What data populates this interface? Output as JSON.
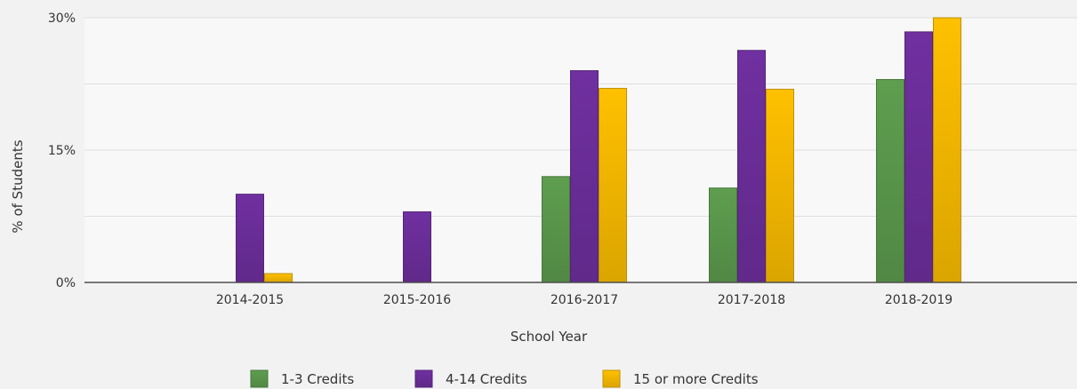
{
  "chart_data": {
    "type": "bar",
    "categories": [
      "2014-2015",
      "2015-2016",
      "2016-2017",
      "2017-2018",
      "2018-2019"
    ],
    "series": [
      {
        "name": "1-3 Credits",
        "color": "#5e9e4f",
        "values": [
          0,
          0,
          12,
          10.7,
          23
        ]
      },
      {
        "name": "4-14 Credits",
        "color": "#7030a0",
        "values": [
          10,
          8,
          24,
          26.3,
          28.4
        ]
      },
      {
        "name": "15 or more Credits",
        "color": "#ffc000",
        "values": [
          1,
          0,
          22,
          21.9,
          30
        ]
      }
    ],
    "title": "",
    "xlabel": "School Year",
    "ylabel": "% of Students",
    "ylim": [
      0,
      30
    ],
    "yticks": [
      0,
      15,
      30
    ],
    "ytick_labels": [
      "0%",
      "15%",
      "30%"
    ],
    "grid": true,
    "legend_position": "bottom"
  }
}
